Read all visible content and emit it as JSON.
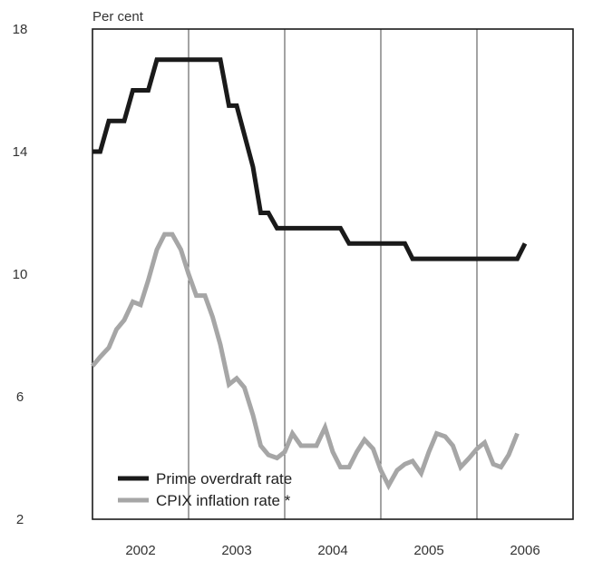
{
  "chart_data": {
    "type": "line",
    "ylabel": "Per cent",
    "ylim": [
      2,
      18
    ],
    "yticks": [
      2,
      6,
      10,
      14,
      18
    ],
    "xlim": [
      2001.5,
      2006.5
    ],
    "xticks": [
      {
        "label": "2002",
        "at": 2002.0
      },
      {
        "label": "2003",
        "at": 2003.0
      },
      {
        "label": "2004",
        "at": 2004.0
      },
      {
        "label": "2005",
        "at": 2005.0
      },
      {
        "label": "2006",
        "at": 2006.0
      }
    ],
    "gridlines_x": [
      2002.5,
      2003.5,
      2004.5,
      2005.5
    ],
    "legend_position": "bottom-left",
    "series": [
      {
        "name": "Prime overdraft rate",
        "color": "#1a1a1a",
        "points": [
          [
            2001.5,
            14.0
          ],
          [
            2001.58,
            14.0
          ],
          [
            2001.67,
            15.0
          ],
          [
            2001.83,
            15.0
          ],
          [
            2001.92,
            16.0
          ],
          [
            2002.08,
            16.0
          ],
          [
            2002.17,
            17.0
          ],
          [
            2002.83,
            17.0
          ],
          [
            2002.92,
            15.5
          ],
          [
            2003.0,
            15.5
          ],
          [
            2003.17,
            13.5
          ],
          [
            2003.25,
            12.0
          ],
          [
            2003.33,
            12.0
          ],
          [
            2003.42,
            11.5
          ],
          [
            2004.08,
            11.5
          ],
          [
            2004.17,
            11.0
          ],
          [
            2004.75,
            11.0
          ],
          [
            2004.83,
            10.5
          ],
          [
            2005.92,
            10.5
          ],
          [
            2006.0,
            11.0
          ]
        ]
      },
      {
        "name": "CPIX inflation rate *",
        "color": "#a6a6a6",
        "points": [
          [
            2001.5,
            7.0
          ],
          [
            2001.58,
            7.3
          ],
          [
            2001.67,
            7.6
          ],
          [
            2001.75,
            8.2
          ],
          [
            2001.83,
            8.5
          ],
          [
            2001.92,
            9.1
          ],
          [
            2002.0,
            9.0
          ],
          [
            2002.08,
            9.8
          ],
          [
            2002.17,
            10.8
          ],
          [
            2002.25,
            11.3
          ],
          [
            2002.33,
            11.3
          ],
          [
            2002.42,
            10.8
          ],
          [
            2002.5,
            10.0
          ],
          [
            2002.58,
            9.3
          ],
          [
            2002.67,
            9.3
          ],
          [
            2002.75,
            8.6
          ],
          [
            2002.83,
            7.7
          ],
          [
            2002.92,
            6.4
          ],
          [
            2003.0,
            6.6
          ],
          [
            2003.08,
            6.3
          ],
          [
            2003.17,
            5.4
          ],
          [
            2003.25,
            4.4
          ],
          [
            2003.33,
            4.1
          ],
          [
            2003.42,
            4.0
          ],
          [
            2003.5,
            4.2
          ],
          [
            2003.58,
            4.8
          ],
          [
            2003.67,
            4.4
          ],
          [
            2003.75,
            4.4
          ],
          [
            2003.83,
            4.4
          ],
          [
            2003.92,
            5.0
          ],
          [
            2004.0,
            4.2
          ],
          [
            2004.08,
            3.7
          ],
          [
            2004.17,
            3.7
          ],
          [
            2004.25,
            4.2
          ],
          [
            2004.33,
            4.6
          ],
          [
            2004.42,
            4.3
          ],
          [
            2004.5,
            3.6
          ],
          [
            2004.58,
            3.1
          ],
          [
            2004.67,
            3.6
          ],
          [
            2004.75,
            3.8
          ],
          [
            2004.83,
            3.9
          ],
          [
            2004.92,
            3.5
          ],
          [
            2005.0,
            4.2
          ],
          [
            2005.08,
            4.8
          ],
          [
            2005.17,
            4.7
          ],
          [
            2005.25,
            4.4
          ],
          [
            2005.33,
            3.7
          ],
          [
            2005.42,
            4.0
          ],
          [
            2005.5,
            4.3
          ],
          [
            2005.58,
            4.5
          ],
          [
            2005.67,
            3.8
          ],
          [
            2005.75,
            3.7
          ],
          [
            2005.83,
            4.1
          ],
          [
            2005.92,
            4.8
          ]
        ]
      }
    ]
  }
}
